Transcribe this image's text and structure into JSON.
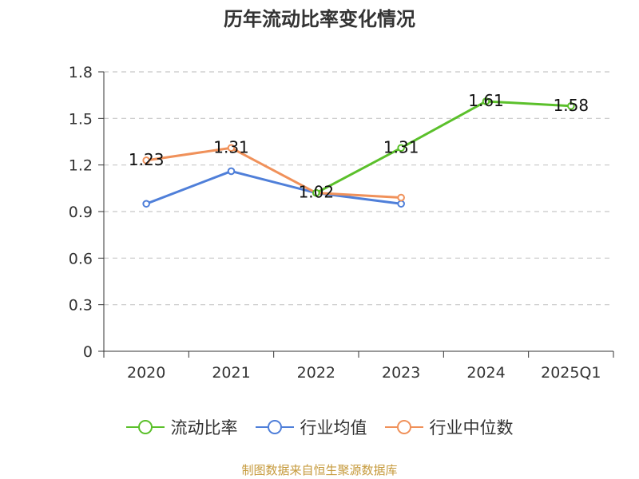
{
  "chart_data": {
    "type": "line",
    "title": "历年流动比率变化情况",
    "categories": [
      "2020",
      "2021",
      "2022",
      "2023",
      "2024",
      "2025Q1"
    ],
    "y_ticks": [
      "0",
      "0.3",
      "0.6",
      "0.9",
      "1.2",
      "1.5",
      "1.8"
    ],
    "ylim": [
      0,
      1.8
    ],
    "grid": true,
    "legend_position": "bottom",
    "series": [
      {
        "name": "流动比率",
        "color": "#5bc02b",
        "values": [
          null,
          null,
          1.02,
          1.31,
          1.61,
          1.58
        ],
        "labels": [
          null,
          null,
          "1.02",
          "1.31",
          "1.61",
          "1.58"
        ]
      },
      {
        "name": "行业均值",
        "color": "#4f7fd9",
        "values": [
          0.95,
          1.16,
          1.02,
          0.95,
          null,
          null
        ],
        "labels": [
          null,
          null,
          null,
          null,
          null,
          null
        ]
      },
      {
        "name": "行业中位数",
        "color": "#f0915a",
        "values": [
          1.23,
          1.31,
          1.02,
          0.99,
          null,
          null
        ],
        "labels": [
          "1.23",
          "1.31",
          null,
          null,
          null,
          null
        ]
      }
    ]
  },
  "legend": {
    "items": [
      "流动比率",
      "行业均值",
      "行业中位数"
    ]
  },
  "source_note": "制图数据来自恒生聚源数据库"
}
